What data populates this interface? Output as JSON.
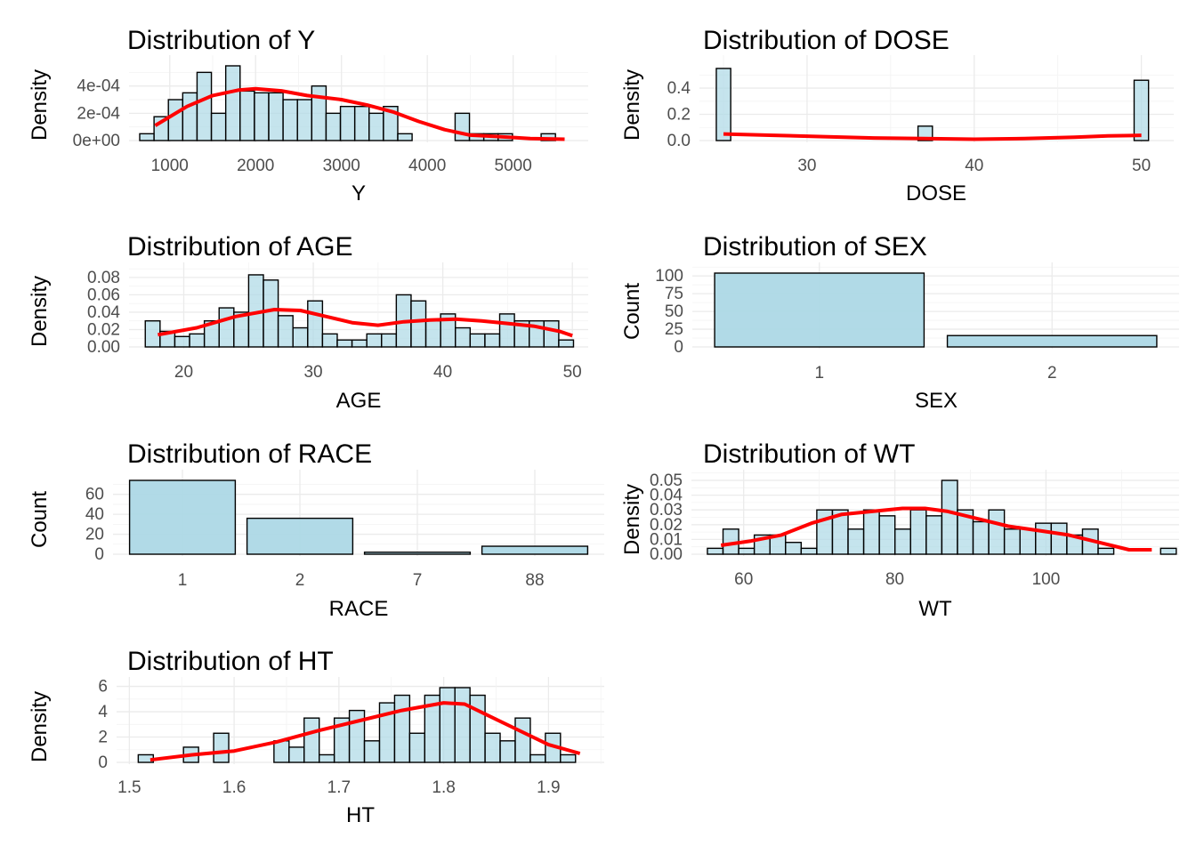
{
  "chart_data": [
    {
      "id": "y",
      "type": "histogram",
      "title": "Distribution of Y",
      "xlabel": "Y",
      "ylabel": "Density",
      "bin_start": 650,
      "bin_width": 167,
      "values": [
        5e-05,
        0.000175,
        0.0003,
        0.00035,
        0.0005,
        0.0002,
        0.000548,
        0.000363,
        0.00035,
        0.00035,
        0.0003,
        0.0003,
        0.0004,
        0.0002,
        0.00025,
        0.00025,
        0.0002,
        0.00025,
        5e-05,
        0.0,
        0.0,
        0.0,
        0.0002,
        5e-05,
        5e-05,
        5e-05,
        0.0,
        0.0,
        5e-05
      ],
      "density_curve": [
        [
          830,
          0.00011
        ],
        [
          1200,
          0.00025
        ],
        [
          1500,
          0.00033
        ],
        [
          1800,
          0.00037
        ],
        [
          2000,
          0.00038
        ],
        [
          2300,
          0.000365
        ],
        [
          2600,
          0.00033
        ],
        [
          3000,
          0.0003
        ],
        [
          3300,
          0.00026
        ],
        [
          3600,
          0.00021
        ],
        [
          3900,
          0.00014
        ],
        [
          4200,
          8e-05
        ],
        [
          4500,
          4e-05
        ],
        [
          4800,
          3e-05
        ],
        [
          5200,
          1.5e-05
        ],
        [
          5600,
          1e-05
        ]
      ],
      "xlim": [
        650,
        5750
      ],
      "ylim": [
        0,
        0.000548
      ],
      "xticks": [
        1000,
        2000,
        3000,
        4000,
        5000
      ],
      "xtick_labels": [
        "1000",
        "2000",
        "3000",
        "4000",
        "5000"
      ],
      "yticks": [
        0,
        0.0002,
        0.0004
      ],
      "ytick_labels": [
        "0e+00",
        "2e-04",
        "4e-04"
      ],
      "grid": true,
      "bar_color": "#add8e6",
      "line_color": "#ff0000"
    },
    {
      "id": "dose",
      "type": "histogram",
      "title": "Distribution of DOSE",
      "xlabel": "DOSE",
      "ylabel": "Density",
      "bin_start": 24.57,
      "bin_width": 0.862,
      "values": [
        0.55,
        0.0,
        0.0,
        0.0,
        0.0,
        0.0,
        0.0,
        0.0,
        0.0,
        0.0,
        0.0,
        0.0,
        0.0,
        0.0,
        0.11,
        0.0,
        0.0,
        0.0,
        0.0,
        0.0,
        0.0,
        0.0,
        0.0,
        0.0,
        0.0,
        0.0,
        0.0,
        0.0,
        0.0,
        0.46
      ],
      "density_curve": [
        [
          25,
          0.05
        ],
        [
          28,
          0.04
        ],
        [
          31,
          0.03
        ],
        [
          34,
          0.02
        ],
        [
          37,
          0.015
        ],
        [
          40,
          0.01
        ],
        [
          43,
          0.015
        ],
        [
          46,
          0.025
        ],
        [
          48,
          0.035
        ],
        [
          50,
          0.04
        ]
      ],
      "xlim": [
        24.2,
        51.3
      ],
      "ylim": [
        0,
        0.57
      ],
      "xticks": [
        30,
        40,
        50
      ],
      "xtick_labels": [
        "30",
        "40",
        "50"
      ],
      "yticks": [
        0,
        0.2,
        0.4
      ],
      "ytick_labels": [
        "0.0",
        "0.2",
        "0.4"
      ],
      "grid": true,
      "bar_color": "#add8e6",
      "line_color": "#ff0000"
    },
    {
      "id": "age",
      "type": "histogram",
      "title": "Distribution of AGE",
      "xlabel": "AGE",
      "ylabel": "Density",
      "bin_start": 17.03,
      "bin_width": 1.14,
      "values": [
        0.03,
        0.018,
        0.012,
        0.015,
        0.03,
        0.045,
        0.04,
        0.083,
        0.077,
        0.036,
        0.022,
        0.053,
        0.015,
        0.008,
        0.008,
        0.015,
        0.015,
        0.06,
        0.053,
        0.03,
        0.038,
        0.022,
        0.015,
        0.015,
        0.038,
        0.03,
        0.03,
        0.03,
        0.008
      ],
      "density_curve": [
        [
          18,
          0.014
        ],
        [
          21,
          0.022
        ],
        [
          24,
          0.035
        ],
        [
          27,
          0.043
        ],
        [
          29,
          0.042
        ],
        [
          31,
          0.035
        ],
        [
          33,
          0.028
        ],
        [
          35,
          0.025
        ],
        [
          37,
          0.029
        ],
        [
          39,
          0.031
        ],
        [
          41,
          0.032
        ],
        [
          43,
          0.03
        ],
        [
          45,
          0.027
        ],
        [
          47,
          0.024
        ],
        [
          49,
          0.018
        ],
        [
          50,
          0.013
        ]
      ],
      "xlim": [
        16.6,
        50.4
      ],
      "ylim": [
        0,
        0.085
      ],
      "xticks": [
        20,
        30,
        40,
        50
      ],
      "xtick_labels": [
        "20",
        "30",
        "40",
        "50"
      ],
      "yticks": [
        0,
        0.02,
        0.04,
        0.06,
        0.08
      ],
      "ytick_labels": [
        "0.00",
        "0.02",
        "0.04",
        "0.06",
        "0.08"
      ],
      "grid": true,
      "bar_color": "#add8e6",
      "line_color": "#ff0000"
    },
    {
      "id": "sex",
      "type": "bar",
      "title": "Distribution of SEX",
      "xlabel": "SEX",
      "ylabel": "Count",
      "categories": [
        "1",
        "2"
      ],
      "values": [
        104,
        16
      ],
      "ylim": [
        0,
        104
      ],
      "yticks": [
        0,
        25,
        50,
        75,
        100
      ],
      "ytick_labels": [
        "0",
        "25",
        "50",
        "75",
        "100"
      ],
      "grid": true,
      "bar_color": "#add8e6"
    },
    {
      "id": "race",
      "type": "bar",
      "title": "Distribution of RACE",
      "xlabel": "RACE",
      "ylabel": "Count",
      "categories": [
        "1",
        "2",
        "7",
        "88"
      ],
      "values": [
        74,
        36,
        2,
        8
      ],
      "ylim": [
        0,
        74
      ],
      "yticks": [
        0,
        20,
        40,
        60
      ],
      "ytick_labels": [
        "0",
        "20",
        "40",
        "60"
      ],
      "grid": true,
      "bar_color": "#add8e6"
    },
    {
      "id": "wt",
      "type": "histogram",
      "title": "Distribution of WT",
      "xlabel": "WT",
      "ylabel": "Density",
      "bin_start": 55.2,
      "bin_width": 2.068,
      "values": [
        0.004,
        0.017,
        0.004,
        0.013,
        0.013,
        0.008,
        0.004,
        0.03,
        0.03,
        0.017,
        0.03,
        0.026,
        0.017,
        0.03,
        0.026,
        0.05,
        0.03,
        0.022,
        0.03,
        0.017,
        0.017,
        0.021,
        0.021,
        0.013,
        0.017,
        0.004,
        0.0,
        0.0,
        0.0,
        0.004
      ],
      "density_curve": [
        [
          57,
          0.006
        ],
        [
          61,
          0.009
        ],
        [
          65,
          0.013
        ],
        [
          69,
          0.021
        ],
        [
          73,
          0.027
        ],
        [
          77,
          0.029
        ],
        [
          81,
          0.031
        ],
        [
          84,
          0.031
        ],
        [
          87,
          0.029
        ],
        [
          91,
          0.024
        ],
        [
          95,
          0.019
        ],
        [
          99,
          0.016
        ],
        [
          103,
          0.013
        ],
        [
          107,
          0.008
        ],
        [
          111,
          0.003
        ],
        [
          114,
          0.003
        ]
      ],
      "xlim": [
        54.5,
        116.2
      ],
      "ylim": [
        0,
        0.05
      ],
      "xticks": [
        60,
        80,
        100
      ],
      "xtick_labels": [
        "60",
        "80",
        "100"
      ],
      "yticks": [
        0,
        0.01,
        0.02,
        0.03,
        0.04,
        0.05
      ],
      "ytick_labels": [
        "0.00",
        "0.01",
        "0.02",
        "0.03",
        "0.04",
        "0.05"
      ],
      "grid": true,
      "bar_color": "#add8e6",
      "line_color": "#ff0000"
    },
    {
      "id": "ht",
      "type": "histogram",
      "title": "Distribution of HT",
      "xlabel": "HT",
      "ylabel": "Density",
      "bin_start": 1.5085,
      "bin_width": 0.01439,
      "values": [
        0.6,
        0.0,
        0.0,
        1.2,
        0.0,
        2.3,
        0.0,
        0.0,
        0.0,
        1.7,
        1.2,
        3.5,
        0.6,
        3.5,
        4.1,
        1.7,
        4.7,
        5.3,
        2.3,
        5.3,
        5.9,
        5.9,
        5.3,
        2.3,
        1.7,
        3.5,
        0.6,
        2.3,
        0.6
      ],
      "density_curve": [
        [
          1.52,
          0.2
        ],
        [
          1.56,
          0.6
        ],
        [
          1.6,
          0.9
        ],
        [
          1.64,
          1.6
        ],
        [
          1.68,
          2.5
        ],
        [
          1.72,
          3.3
        ],
        [
          1.76,
          4.1
        ],
        [
          1.8,
          4.7
        ],
        [
          1.82,
          4.6
        ],
        [
          1.84,
          3.8
        ],
        [
          1.87,
          2.6
        ],
        [
          1.9,
          1.4
        ],
        [
          1.93,
          0.7
        ]
      ],
      "xlim": [
        1.498,
        1.943
      ],
      "ylim": [
        0,
        5.9
      ],
      "xticks": [
        1.5,
        1.6,
        1.7,
        1.8,
        1.9
      ],
      "xtick_labels": [
        "1.5",
        "1.6",
        "1.7",
        "1.8",
        "1.9"
      ],
      "yticks": [
        0,
        2,
        4,
        6
      ],
      "ytick_labels": [
        "0",
        "2",
        "4",
        "6"
      ],
      "grid": true,
      "bar_color": "#add8e6",
      "line_color": "#ff0000"
    }
  ]
}
